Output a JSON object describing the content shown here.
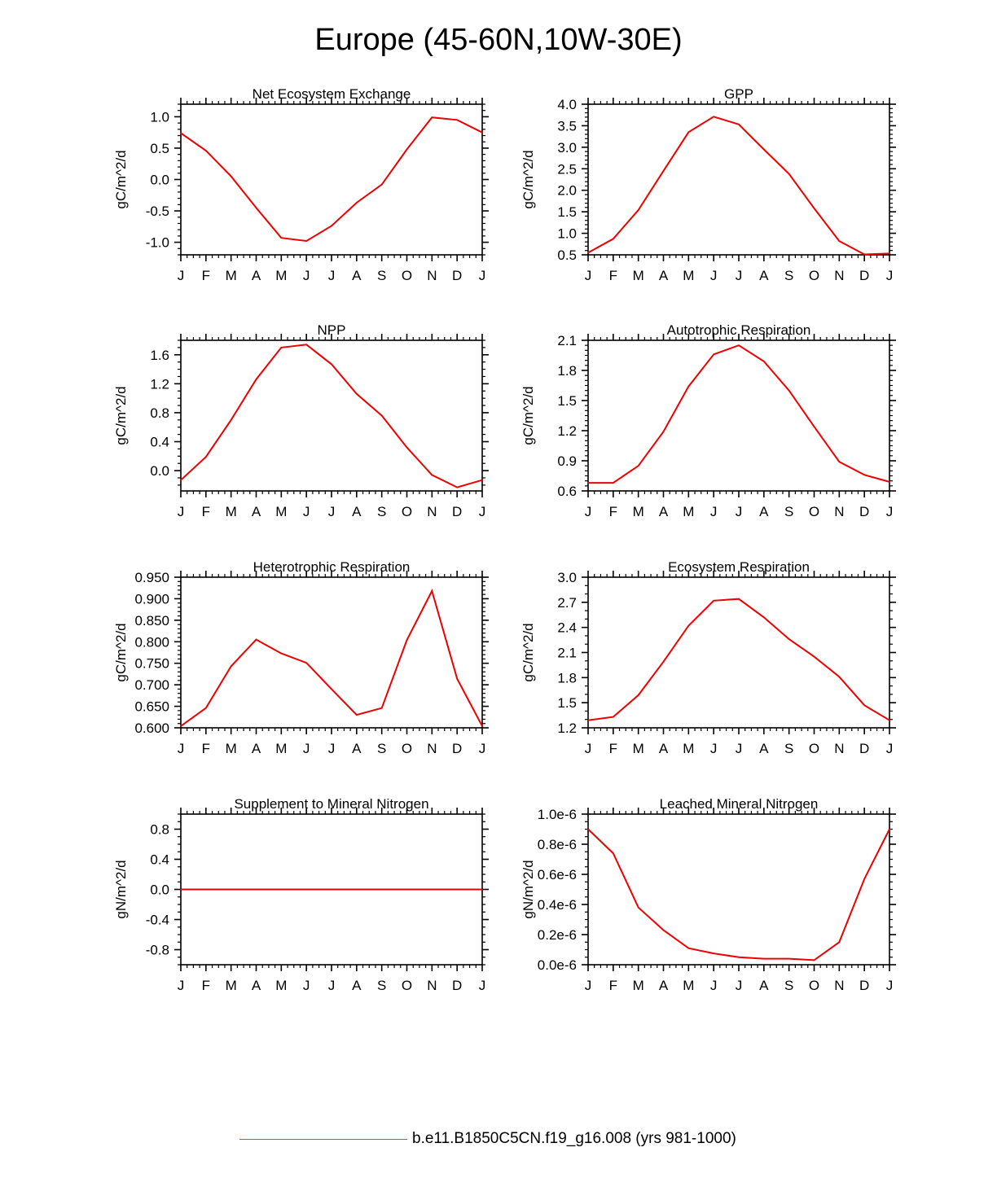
{
  "page": {
    "title": "Europe (45-60N,10W-30E)"
  },
  "legend": {
    "label": "b.e11.B1850C5CN.f19_g16.008 (yrs 981-1000)",
    "color": "#e8403a"
  },
  "line_color": "#ee0000",
  "chart_data": [
    {
      "type": "line",
      "title": "Net Ecosystem Exchange",
      "ylabel": "gC/m^2/d",
      "categories": [
        "J",
        "F",
        "M",
        "A",
        "M",
        "J",
        "J",
        "A",
        "S",
        "O",
        "N",
        "D",
        "J"
      ],
      "ylim": [
        -1.2,
        1.2
      ],
      "yticks": [
        1.0,
        0.5,
        0.0,
        -0.5,
        -1.0
      ],
      "ytick_labels": [
        "1.0",
        "0.5",
        "0.0",
        "-0.5",
        "-1.0"
      ],
      "yminor": [
        -1.2,
        -1.1,
        -0.9,
        -0.8,
        -0.7,
        -0.6,
        -0.4,
        -0.3,
        -0.2,
        -0.1,
        0.1,
        0.2,
        0.3,
        0.4,
        0.6,
        0.7,
        0.8,
        0.9,
        1.1,
        1.2
      ],
      "values": [
        0.74,
        0.46,
        0.05,
        -0.45,
        -0.93,
        -0.98,
        -0.74,
        -0.37,
        -0.08,
        0.48,
        0.99,
        0.95,
        0.75
      ]
    },
    {
      "type": "line",
      "title": "GPP",
      "ylabel": "gC/m^2/d",
      "categories": [
        "J",
        "F",
        "M",
        "A",
        "M",
        "J",
        "J",
        "A",
        "S",
        "O",
        "N",
        "D",
        "J"
      ],
      "ylim": [
        0.5,
        4.0
      ],
      "yticks": [
        4.0,
        3.5,
        3.0,
        2.5,
        2.0,
        1.5,
        1.0,
        0.5
      ],
      "ytick_labels": [
        "4.0",
        "3.5",
        "3.0",
        "2.5",
        "2.0",
        "1.5",
        "1.0",
        "0.5"
      ],
      "yminor": [
        0.6,
        0.7,
        0.8,
        0.9,
        1.1,
        1.2,
        1.3,
        1.4,
        1.6,
        1.7,
        1.8,
        1.9,
        2.1,
        2.2,
        2.3,
        2.4,
        2.6,
        2.7,
        2.8,
        2.9,
        3.1,
        3.2,
        3.3,
        3.4,
        3.6,
        3.7,
        3.8,
        3.9
      ],
      "values": [
        0.55,
        0.87,
        1.54,
        2.45,
        3.35,
        3.71,
        3.53,
        2.95,
        2.38,
        1.58,
        0.82,
        0.51,
        0.53
      ]
    },
    {
      "type": "line",
      "title": "NPP",
      "ylabel": "gC/m^2/d",
      "categories": [
        "J",
        "F",
        "M",
        "A",
        "M",
        "J",
        "J",
        "A",
        "S",
        "O",
        "N",
        "D",
        "J"
      ],
      "ylim": [
        -0.28,
        1.8
      ],
      "yticks": [
        1.6,
        1.2,
        0.8,
        0.4,
        0.0
      ],
      "ytick_labels": [
        "1.6",
        "1.2",
        "0.8",
        "0.4",
        "0.0"
      ],
      "yminor": [
        -0.2,
        -0.1,
        0.1,
        0.2,
        0.3,
        0.5,
        0.6,
        0.7,
        0.9,
        1.0,
        1.1,
        1.3,
        1.4,
        1.5,
        1.7,
        1.8
      ],
      "values": [
        -0.13,
        0.19,
        0.7,
        1.26,
        1.7,
        1.74,
        1.47,
        1.06,
        0.76,
        0.32,
        -0.06,
        -0.23,
        -0.13
      ]
    },
    {
      "type": "line",
      "title": "Autotrophic Respiration",
      "ylabel": "gC/m^2/d",
      "categories": [
        "J",
        "F",
        "M",
        "A",
        "M",
        "J",
        "J",
        "A",
        "S",
        "O",
        "N",
        "D",
        "J"
      ],
      "ylim": [
        0.6,
        2.1
      ],
      "yticks": [
        2.1,
        1.8,
        1.5,
        1.2,
        0.9,
        0.6
      ],
      "ytick_labels": [
        "2.1",
        "1.8",
        "1.5",
        "1.2",
        "0.9",
        "0.6"
      ],
      "yminor": [
        0.65,
        0.7,
        0.75,
        0.8,
        0.85,
        0.95,
        1.0,
        1.05,
        1.1,
        1.15,
        1.25,
        1.3,
        1.35,
        1.4,
        1.45,
        1.55,
        1.6,
        1.65,
        1.7,
        1.75,
        1.85,
        1.9,
        1.95,
        2.0,
        2.05
      ],
      "values": [
        0.68,
        0.68,
        0.85,
        1.19,
        1.64,
        1.96,
        2.05,
        1.89,
        1.6,
        1.24,
        0.89,
        0.76,
        0.69
      ]
    },
    {
      "type": "line",
      "title": "Heterotrophic Respiration",
      "ylabel": "gC/m^2/d",
      "categories": [
        "J",
        "F",
        "M",
        "A",
        "M",
        "J",
        "J",
        "A",
        "S",
        "O",
        "N",
        "D",
        "J"
      ],
      "ylim": [
        0.6,
        0.95
      ],
      "yticks": [
        0.95,
        0.9,
        0.85,
        0.8,
        0.75,
        0.7,
        0.65,
        0.6
      ],
      "ytick_labels": [
        "0.950",
        "0.900",
        "0.850",
        "0.800",
        "0.750",
        "0.700",
        "0.650",
        "0.600"
      ],
      "yminor": [
        0.61,
        0.62,
        0.63,
        0.64,
        0.66,
        0.67,
        0.68,
        0.69,
        0.71,
        0.72,
        0.73,
        0.74,
        0.76,
        0.77,
        0.78,
        0.79,
        0.81,
        0.82,
        0.83,
        0.84,
        0.86,
        0.87,
        0.88,
        0.89,
        0.91,
        0.92,
        0.93,
        0.94
      ],
      "values": [
        0.604,
        0.646,
        0.743,
        0.805,
        0.773,
        0.751,
        0.69,
        0.63,
        0.646,
        0.804,
        0.918,
        0.714,
        0.604
      ]
    },
    {
      "type": "line",
      "title": "Ecosystem Respiration",
      "ylabel": "gC/m^2/d",
      "categories": [
        "J",
        "F",
        "M",
        "A",
        "M",
        "J",
        "J",
        "A",
        "S",
        "O",
        "N",
        "D",
        "J"
      ],
      "ylim": [
        1.2,
        3.0
      ],
      "yticks": [
        3.0,
        2.7,
        2.4,
        2.1,
        1.8,
        1.5,
        1.2
      ],
      "ytick_labels": [
        "3.0",
        "2.7",
        "2.4",
        "2.1",
        "1.8",
        "1.5",
        "1.2"
      ],
      "yminor": [
        1.3,
        1.4,
        1.6,
        1.7,
        1.9,
        2.0,
        2.2,
        2.3,
        2.5,
        2.6,
        2.8,
        2.9
      ],
      "values": [
        1.29,
        1.33,
        1.59,
        1.99,
        2.42,
        2.72,
        2.74,
        2.52,
        2.26,
        2.05,
        1.81,
        1.47,
        1.29
      ]
    },
    {
      "type": "line",
      "title": "Supplement to Mineral Nitrogen",
      "ylabel": "gN/m^2/d",
      "categories": [
        "J",
        "F",
        "M",
        "A",
        "M",
        "J",
        "J",
        "A",
        "S",
        "O",
        "N",
        "D",
        "J"
      ],
      "ylim": [
        -1.0,
        1.0
      ],
      "yticks": [
        0.8,
        0.4,
        0.0,
        -0.4,
        -0.8
      ],
      "ytick_labels": [
        "0.8",
        "0.4",
        "0.0",
        "-0.4",
        "-0.8"
      ],
      "yminor": [
        -1.0,
        -0.9,
        -0.7,
        -0.6,
        -0.5,
        -0.3,
        -0.2,
        -0.1,
        0.1,
        0.2,
        0.3,
        0.5,
        0.6,
        0.7,
        0.9,
        1.0
      ],
      "values": [
        0,
        0,
        0,
        0,
        0,
        0,
        0,
        0,
        0,
        0,
        0,
        0,
        0
      ]
    },
    {
      "type": "line",
      "title": "Leached Mineral Nitrogen",
      "ylabel": "gN/m^2/d",
      "categories": [
        "J",
        "F",
        "M",
        "A",
        "M",
        "J",
        "J",
        "A",
        "S",
        "O",
        "N",
        "D",
        "J"
      ],
      "ylim": [
        0.0,
        1.0
      ],
      "yticks": [
        1.0,
        0.8,
        0.6,
        0.4,
        0.2,
        0.0
      ],
      "ytick_labels": [
        "1.0e-6",
        "0.8e-6",
        "0.6e-6",
        "0.4e-6",
        "0.2e-6",
        "0.0e-6"
      ],
      "yminor": [
        0.05,
        0.1,
        0.15,
        0.25,
        0.3,
        0.35,
        0.45,
        0.5,
        0.55,
        0.65,
        0.7,
        0.75,
        0.85,
        0.9,
        0.95
      ],
      "values": [
        0.9,
        0.74,
        0.38,
        0.23,
        0.11,
        0.075,
        0.05,
        0.04,
        0.04,
        0.03,
        0.15,
        0.57,
        0.9
      ]
    }
  ]
}
